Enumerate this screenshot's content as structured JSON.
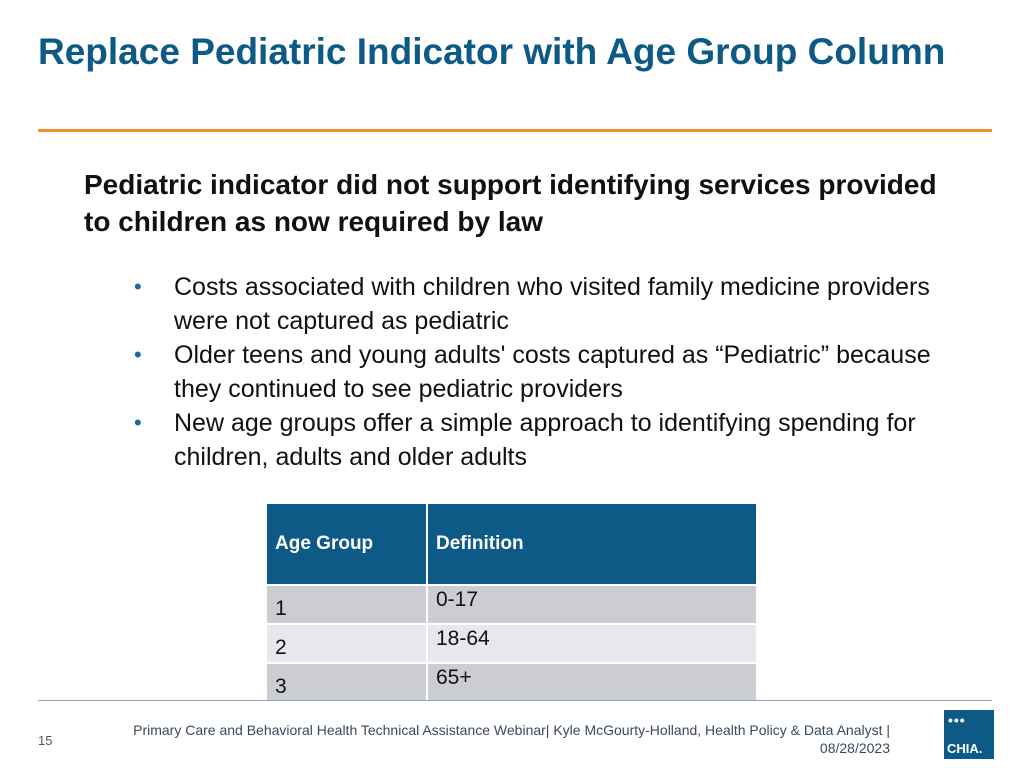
{
  "slide": {
    "title": "Replace Pediatric Indicator with Age Group Column",
    "subtitle": "Pediatric indicator did not support identifying services provided to children as now required by law",
    "bullets": [
      "Costs associated with children who visited family medicine providers were not captured as pediatric",
      "Older teens and young adults' costs captured as “Pediatric” because they continued to see pediatric providers",
      "New age groups offer a simple approach to identifying spending for children, adults and older adults"
    ],
    "bullet_glyph": "•"
  },
  "table": {
    "headers": [
      "Age Group",
      "Definition"
    ],
    "rows": [
      {
        "group": "1",
        "definition": "0-17"
      },
      {
        "group": "2",
        "definition": "18-64"
      },
      {
        "group": "3",
        "definition": "65+"
      }
    ]
  },
  "footer": {
    "page_number": "15",
    "text": "Primary Care and Behavioral Health Technical Assistance Webinar|  Kyle McGourty-Holland, Health Policy & Data Analyst  | 08/28/2023"
  },
  "logo": {
    "dots": "•••",
    "text": "CHIA."
  },
  "colors": {
    "title_blue": "#0e5a86",
    "accent_orange": "#f0912c",
    "header_fill": "#0e5a86",
    "row_dark": "#cbcdd2",
    "row_light": "#e7e8eb"
  }
}
